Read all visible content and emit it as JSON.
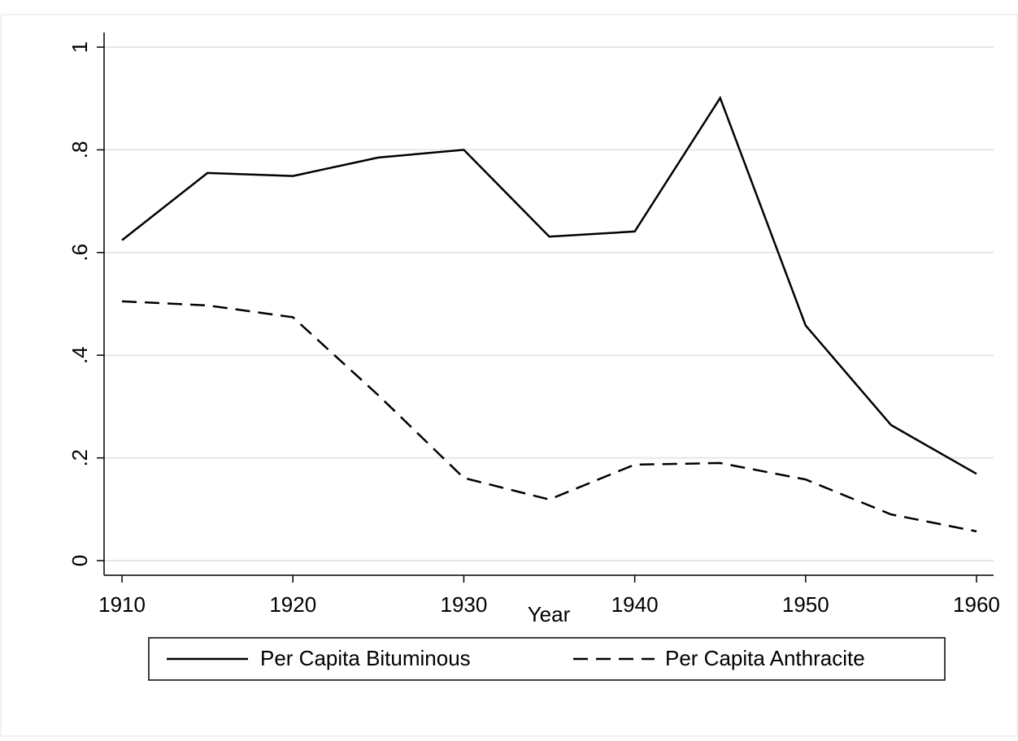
{
  "chart_data": {
    "type": "line",
    "x_label": "Year",
    "x": [
      1910,
      1915,
      1920,
      1925,
      1930,
      1935,
      1940,
      1945,
      1950,
      1955,
      1960
    ],
    "series": [
      {
        "name": "Per Capita Bituminous",
        "color": "#000000",
        "dash": "solid",
        "values": [
          0.624,
          0.755,
          0.749,
          0.785,
          0.8,
          0.631,
          0.641,
          0.901,
          0.458,
          0.264,
          0.169
        ]
      },
      {
        "name": "Per Capita Anthracite",
        "color": "#000000",
        "dash": "dashed",
        "values": [
          0.505,
          0.497,
          0.474,
          0.322,
          0.161,
          0.119,
          0.187,
          0.19,
          0.158,
          0.09,
          0.057
        ]
      }
    ],
    "xlim": [
      1908.95,
      1961
    ],
    "xticks": [
      1910,
      1920,
      1930,
      1940,
      1950,
      1960
    ],
    "ylim": [
      -0.0285,
      1.0285
    ],
    "yticks": [
      0,
      {
        "value": 0.2,
        "label": ".2"
      },
      {
        "value": 0.4,
        "label": ".4"
      },
      {
        "value": 0.6,
        "label": ".6"
      },
      {
        "value": 0.8,
        "label": ".8"
      },
      1
    ],
    "grid": true,
    "legend": "bottom"
  }
}
